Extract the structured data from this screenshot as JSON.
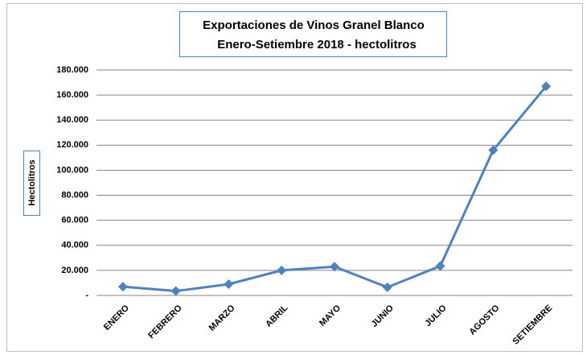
{
  "chart_data": {
    "type": "line",
    "title": [
      "Exportaciones de Vinos Granel Blanco",
      "Enero-Setiembre 2018 - hectolitros"
    ],
    "y_label": "Hectolitros",
    "categories": [
      "ENERO",
      "FEBRERO",
      "MARZO",
      "ABRIL",
      "MAYO",
      "JUNIO",
      "JULIO",
      "AGOSTO",
      "SETIEMBRE"
    ],
    "series": [
      {
        "name": "Hectolitros",
        "color": "#4f81bd",
        "values": [
          7000,
          3500,
          9000,
          20000,
          23000,
          6500,
          23500,
          116000,
          167000
        ]
      }
    ],
    "ylim": [
      0,
      180000
    ],
    "yticks": [
      {
        "value": 0,
        "label": "-"
      },
      {
        "value": 20000,
        "label": "20.000"
      },
      {
        "value": 40000,
        "label": "40.000"
      },
      {
        "value": 60000,
        "label": "60.000"
      },
      {
        "value": 80000,
        "label": "80.000"
      },
      {
        "value": 100000,
        "label": "100.000"
      },
      {
        "value": 120000,
        "label": "120.000"
      },
      {
        "value": 140000,
        "label": "140.000"
      },
      {
        "value": 160000,
        "label": "160.000"
      },
      {
        "value": 180000,
        "label": "180.000"
      }
    ],
    "grid": true
  }
}
